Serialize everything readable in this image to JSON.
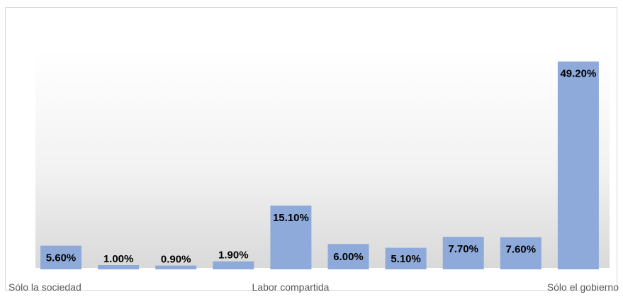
{
  "chart_data": {
    "type": "bar",
    "title": "",
    "xlabel": "",
    "ylabel": "",
    "ylim": [
      0,
      52
    ],
    "grid": false,
    "legend": "none",
    "values": [
      5.6,
      1.0,
      0.9,
      1.9,
      15.1,
      6.0,
      5.1,
      7.7,
      7.6,
      49.2
    ],
    "labels": [
      "5.60%",
      "1.00%",
      "0.90%",
      "1.90%",
      "15.10%",
      "6.00%",
      "5.10%",
      "7.70%",
      "7.60%",
      "49.20%"
    ],
    "axis_labels": [
      "Sólo la sociedad",
      "Labor compartida",
      "Sólo el gobierno"
    ],
    "bar_color": "#8eaadb"
  }
}
